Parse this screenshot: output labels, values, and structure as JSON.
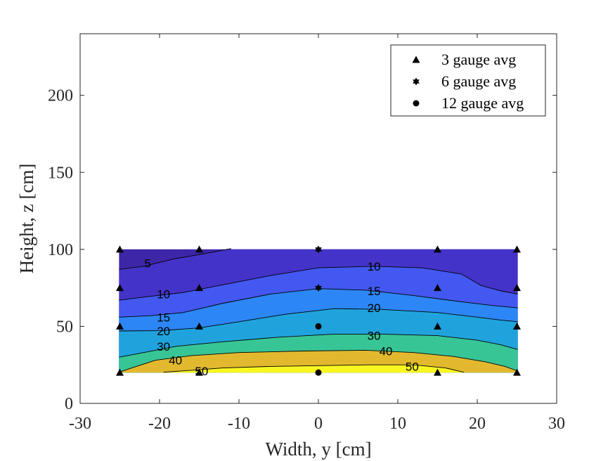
{
  "chart_data": {
    "type": "contour",
    "title": "",
    "xlabel": "Width, y [cm]",
    "ylabel": "Height, z [cm]",
    "xlim": [
      -30,
      30
    ],
    "ylim": [
      0,
      240
    ],
    "x_ticks": [
      -30,
      -20,
      -10,
      0,
      10,
      20,
      30
    ],
    "y_ticks": [
      0,
      50,
      100,
      150,
      200
    ],
    "grid": false,
    "legend_position": "top-right",
    "series": [
      {
        "name": "3 gauge avg",
        "marker": "triangle",
        "points": [
          [
            -25,
            100
          ],
          [
            -15,
            100
          ],
          [
            15,
            100
          ],
          [
            25,
            100
          ],
          [
            -25,
            75
          ],
          [
            -15,
            75
          ],
          [
            15,
            75
          ],
          [
            25,
            75
          ],
          [
            -25,
            50
          ],
          [
            -15,
            50
          ],
          [
            15,
            50
          ],
          [
            25,
            50
          ],
          [
            -25,
            20
          ],
          [
            -15,
            20
          ],
          [
            15,
            20
          ],
          [
            25,
            20
          ]
        ]
      },
      {
        "name": "6 gauge avg",
        "marker": "star",
        "points": [
          [
            0,
            100
          ],
          [
            0,
            75
          ]
        ]
      },
      {
        "name": "12 gauge avg",
        "marker": "circle",
        "points": [
          [
            0,
            50
          ],
          [
            0,
            20
          ]
        ]
      }
    ],
    "contour_levels": [
      5,
      10,
      15,
      20,
      30,
      40,
      50
    ],
    "contour_labels": [
      {
        "text": "5",
        "x": -21.5,
        "y": 91
      },
      {
        "text": "10",
        "x": -19.5,
        "y": 71
      },
      {
        "text": "15",
        "x": -19.5,
        "y": 56
      },
      {
        "text": "20",
        "x": -19.5,
        "y": 47
      },
      {
        "text": "30",
        "x": -19.5,
        "y": 37
      },
      {
        "text": "40",
        "x": -18,
        "y": 28
      },
      {
        "text": "50",
        "x": -14.7,
        "y": 21
      },
      {
        "text": "10",
        "x": 7,
        "y": 89
      },
      {
        "text": "15",
        "x": 7,
        "y": 73
      },
      {
        "text": "20",
        "x": 7,
        "y": 62
      },
      {
        "text": "30",
        "x": 7,
        "y": 44
      },
      {
        "text": "40",
        "x": 8.5,
        "y": 34
      },
      {
        "text": "50",
        "x": 11.8,
        "y": 24
      }
    ],
    "colors": {
      "band_0_5": "#3e26a8",
      "band_5_10": "#4433c8",
      "band_10_15": "#4358f0",
      "band_15_20": "#2c86f5",
      "band_20_30": "#20a3dd",
      "band_30_40": "#38c596",
      "band_40_50": "#e2b92e",
      "band_50_up": "#f9f720"
    }
  }
}
